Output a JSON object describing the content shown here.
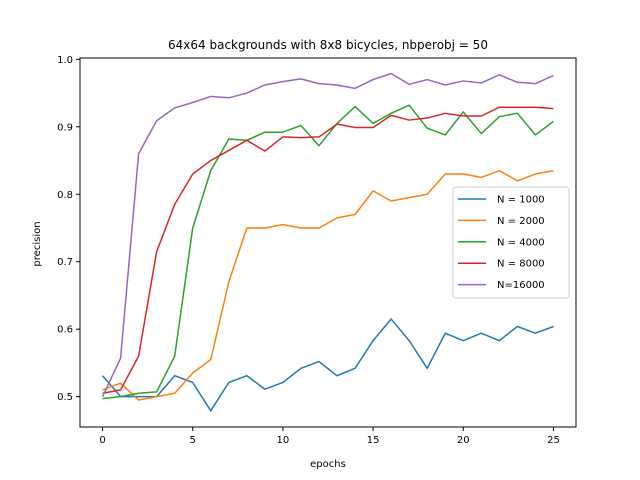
{
  "chart_data": {
    "type": "line",
    "title": "64x64 backgrounds with 8x8 bicycles, nbperobj = 50",
    "xlabel": "epochs",
    "ylabel": "precision",
    "xlim": [
      -1.25,
      26.25
    ],
    "ylim": [
      0.455,
      1.002
    ],
    "xticks": [
      0,
      5,
      10,
      15,
      20,
      25
    ],
    "yticks": [
      0.5,
      0.6,
      0.7,
      0.8,
      0.9,
      1.0
    ],
    "ytick_labels": [
      "0.5",
      "0.6",
      "0.7",
      "0.8",
      "0.9",
      "1.0"
    ],
    "grid": false,
    "legend_position": "center-right",
    "x": [
      0,
      1,
      2,
      3,
      4,
      5,
      6,
      7,
      8,
      9,
      10,
      11,
      12,
      13,
      14,
      15,
      16,
      17,
      18,
      19,
      20,
      21,
      22,
      23,
      24,
      25
    ],
    "series": [
      {
        "name": "N = 1000",
        "color": "#1f77b4",
        "values": [
          0.531,
          0.5,
          0.5,
          0.5,
          0.531,
          0.521,
          0.479,
          0.521,
          0.531,
          0.511,
          0.521,
          0.542,
          0.552,
          0.531,
          0.542,
          0.583,
          0.615,
          0.583,
          0.542,
          0.594,
          0.583,
          0.594,
          0.583,
          0.604,
          0.594,
          0.604
        ]
      },
      {
        "name": "N = 2000",
        "color": "#ff7f0e",
        "values": [
          0.51,
          0.52,
          0.495,
          0.5,
          0.505,
          0.535,
          0.555,
          0.67,
          0.75,
          0.75,
          0.755,
          0.75,
          0.75,
          0.765,
          0.77,
          0.805,
          0.79,
          0.795,
          0.8,
          0.83,
          0.83,
          0.825,
          0.835,
          0.82,
          0.83,
          0.835
        ]
      },
      {
        "name": "N = 4000",
        "color": "#2ca02c",
        "values": [
          0.497,
          0.5,
          0.505,
          0.507,
          0.56,
          0.75,
          0.835,
          0.882,
          0.88,
          0.892,
          0.892,
          0.902,
          0.872,
          0.905,
          0.93,
          0.905,
          0.92,
          0.932,
          0.898,
          0.888,
          0.922,
          0.89,
          0.915,
          0.92,
          0.888,
          0.908
        ]
      },
      {
        "name": "N = 8000",
        "color": "#d62728",
        "values": [
          0.505,
          0.51,
          0.56,
          0.715,
          0.785,
          0.83,
          0.85,
          0.865,
          0.88,
          0.864,
          0.885,
          0.884,
          0.885,
          0.904,
          0.899,
          0.899,
          0.917,
          0.91,
          0.913,
          0.92,
          0.916,
          0.916,
          0.929,
          0.929,
          0.929,
          0.927
        ]
      },
      {
        "name": "N=16000",
        "color": "#9467bd",
        "values": [
          0.5,
          0.557,
          0.86,
          0.909,
          0.928,
          0.936,
          0.945,
          0.943,
          0.95,
          0.962,
          0.967,
          0.971,
          0.964,
          0.962,
          0.957,
          0.97,
          0.979,
          0.963,
          0.97,
          0.962,
          0.968,
          0.965,
          0.977,
          0.966,
          0.964,
          0.976
        ]
      }
    ]
  }
}
